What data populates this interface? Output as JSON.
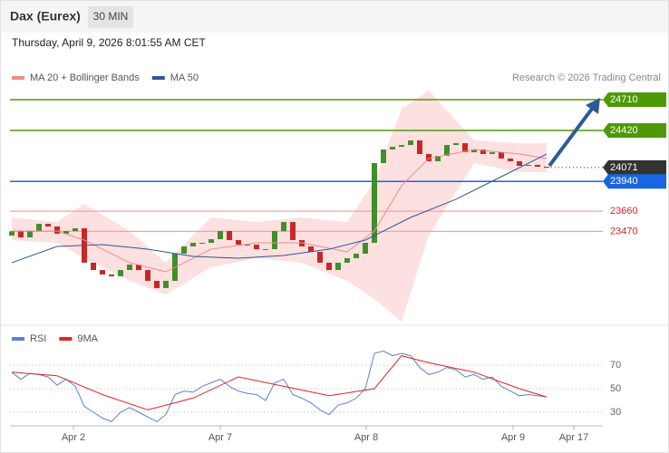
{
  "header": {
    "title": "Dax (Eurex)",
    "timeframe": "30 MIN",
    "datetime": "Thursday, April 9, 2026 8:01:55 AM CET"
  },
  "chart_data": [
    {
      "type": "candlestick",
      "copyright": "Research © 2026 Trading Central",
      "xlim": [
        -0.2,
        65.2
      ],
      "ylim": [
        22620,
        24838
      ],
      "candles": {
        "up_color": "#3f8f2a",
        "down_color": "#c62828",
        "open": [
          23430,
          23470,
          23413,
          23470,
          23541,
          23516,
          23448,
          23473,
          23499,
          23175,
          23106,
          23064,
          23047,
          23106,
          23157,
          23106,
          23004,
          22936,
          23004,
          23260,
          23328,
          23362,
          23362,
          23396,
          23473,
          23388,
          23345,
          23345,
          23302,
          23302,
          23473,
          23558,
          23388,
          23328,
          23277,
          23175,
          23106,
          23175,
          23217,
          23260,
          23362,
          24113,
          24241,
          24266,
          24283,
          24326,
          24198,
          24130,
          24181,
          24283,
          24300,
          24215,
          24241,
          24198,
          24215,
          24156,
          24130,
          24087,
          24096,
          24079
        ],
        "close": [
          23470,
          23413,
          23470,
          23541,
          23516,
          23448,
          23473,
          23499,
          23175,
          23106,
          23064,
          23047,
          23106,
          23157,
          23106,
          23004,
          22936,
          23004,
          23260,
          23328,
          23362,
          23362,
          23396,
          23473,
          23388,
          23345,
          23345,
          23302,
          23302,
          23473,
          23558,
          23388,
          23328,
          23277,
          23175,
          23106,
          23175,
          23217,
          23260,
          23362,
          24113,
          24241,
          24266,
          24283,
          24326,
          24198,
          24130,
          24181,
          24283,
          24300,
          24215,
          24241,
          24198,
          24215,
          24156,
          24130,
          24087,
          24096,
          24079,
          24071
        ]
      },
      "series": [
        {
          "name": "MA 20 + Bollinger Bands",
          "color": "#f08a8a",
          "band_color": "#fde0e0",
          "x": [
            0,
            5,
            8,
            13,
            17,
            22,
            27,
            32,
            37,
            40,
            43,
            46,
            51,
            56,
            59
          ],
          "values": [
            23473,
            23473,
            23388,
            23175,
            23089,
            23302,
            23362,
            23362,
            23277,
            23473,
            23900,
            24156,
            24241,
            24198,
            24156
          ],
          "upper": [
            23601,
            23558,
            23729,
            23473,
            23175,
            23601,
            23558,
            23601,
            23558,
            23942,
            24625,
            24795,
            24326,
            24300,
            24300
          ],
          "lower": [
            23388,
            23362,
            23217,
            23004,
            22876,
            23132,
            23217,
            23175,
            23004,
            22833,
            22620,
            23430,
            24113,
            24027,
            24027
          ]
        },
        {
          "name": "MA 50",
          "color": "#2f5597",
          "x": [
            0,
            5,
            10,
            15,
            20,
            25,
            30,
            35,
            39,
            44,
            49,
            54,
            59
          ],
          "values": [
            23175,
            23328,
            23345,
            23302,
            23234,
            23217,
            23243,
            23302,
            23388,
            23601,
            23772,
            23985,
            24198
          ]
        }
      ],
      "levels": [
        {
          "value": 24710,
          "color": "#4e9a06",
          "boxed": true
        },
        {
          "value": 24420,
          "color": "#4e9a06",
          "boxed": true
        },
        {
          "value": 24071,
          "color": "#333333",
          "boxed": true
        },
        {
          "value": 23940,
          "color": "#1a66e0",
          "boxed": true
        },
        {
          "value": 23660,
          "color": "#e02424",
          "boxed": false
        },
        {
          "value": 23470,
          "color": "#e02424",
          "boxed": false
        }
      ]
    },
    {
      "type": "line",
      "xlim": [
        -0.2,
        65.2
      ],
      "ylim": [
        22,
        88
      ],
      "yticks": [
        30,
        50,
        70
      ],
      "grid": true,
      "xticks": [
        {
          "value": 6.8,
          "label": "Apr 2"
        },
        {
          "value": 23,
          "label": "Apr 7"
        },
        {
          "value": 39.1,
          "label": "Apr 8"
        },
        {
          "value": 55.3,
          "label": "Apr 9"
        },
        {
          "value": 62,
          "label": "Apr 17"
        }
      ],
      "series": [
        {
          "name": "RSI",
          "color": "#5b7fdc",
          "x": [
            0,
            1,
            2,
            3,
            4,
            5,
            6,
            7,
            8,
            9,
            10,
            11,
            12,
            13,
            14,
            15,
            16,
            17,
            18,
            19,
            20,
            21,
            22,
            23,
            24,
            25,
            26,
            27,
            28,
            29,
            30,
            31,
            32,
            33,
            34,
            35,
            36,
            37,
            38,
            39,
            40,
            41,
            42,
            43,
            44,
            45,
            46,
            47,
            48,
            49,
            50,
            51,
            52,
            53,
            54,
            55,
            56,
            57,
            58,
            59
          ],
          "values": [
            64,
            58,
            63,
            62,
            60,
            53,
            58,
            52,
            35,
            30,
            25,
            22,
            30,
            34,
            30,
            26,
            22,
            28,
            45,
            48,
            47,
            52,
            55,
            58,
            52,
            48,
            46,
            45,
            40,
            55,
            58,
            45,
            42,
            38,
            32,
            28,
            36,
            38,
            42,
            50,
            80,
            82,
            78,
            80,
            78,
            68,
            62,
            64,
            68,
            66,
            60,
            62,
            58,
            60,
            52,
            48,
            44,
            45,
            44,
            43
          ]
        },
        {
          "name": "9MA",
          "color": "#e02424",
          "x": [
            0,
            5,
            10,
            15,
            20,
            25,
            30,
            35,
            40,
            43,
            46,
            51,
            56,
            59
          ],
          "values": [
            64,
            61,
            45,
            32,
            42,
            60,
            52,
            44,
            50,
            78,
            72,
            64,
            50,
            43
          ]
        }
      ]
    }
  ]
}
